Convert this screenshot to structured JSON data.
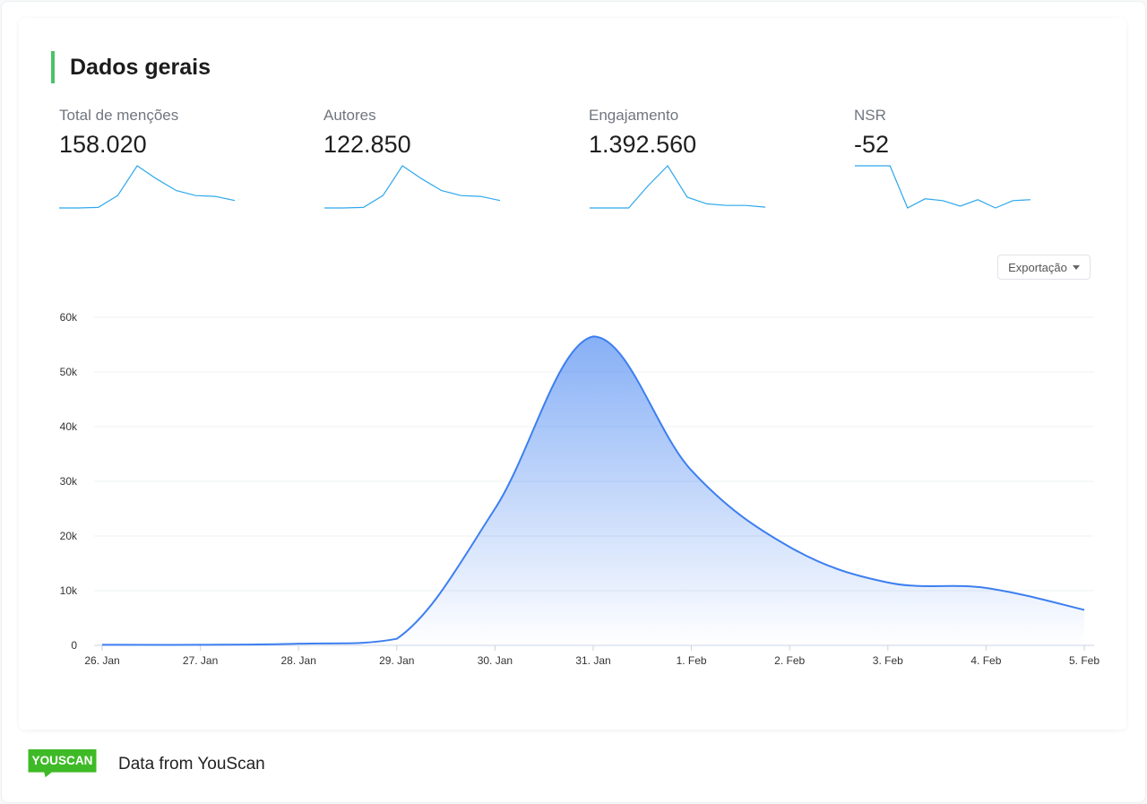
{
  "section": {
    "title": "Dados gerais"
  },
  "metrics": [
    {
      "label": "Total de menções",
      "value": "158.020",
      "spark": [
        0.5,
        0.5,
        0.8,
        8,
        26,
        18,
        11,
        8,
        7.5,
        5
      ]
    },
    {
      "label": "Autores",
      "value": "122.850",
      "spark": [
        0.5,
        0.5,
        0.8,
        8,
        26,
        18,
        11,
        8,
        7.5,
        5
      ]
    },
    {
      "label": "Engajamento",
      "value": "1.392.560",
      "spark": [
        0.5,
        0.5,
        0.5,
        14,
        26,
        7,
        3,
        2,
        2,
        1
      ]
    },
    {
      "label": "NSR",
      "value": "-52",
      "spark": [
        50,
        50,
        50,
        4,
        14,
        12,
        6,
        13,
        4,
        12,
        13
      ]
    }
  ],
  "toolbar": {
    "export_label": "Exportação"
  },
  "chart_data": {
    "type": "area",
    "title": "",
    "xlabel": "",
    "ylabel": "",
    "categories": [
      "26. Jan",
      "27. Jan",
      "28. Jan",
      "29. Jan",
      "30. Jan",
      "31. Jan",
      "1. Feb",
      "2. Feb",
      "3. Feb",
      "4. Feb",
      "5. Feb"
    ],
    "values": [
      100,
      100,
      300,
      1200,
      25000,
      56500,
      32000,
      18000,
      11500,
      10500,
      6500
    ],
    "ylim": [
      0,
      60000
    ],
    "y_ticks": [
      "0",
      "10k",
      "20k",
      "30k",
      "40k",
      "50k",
      "60k"
    ],
    "grid": true,
    "color": "#3d7ff0"
  },
  "footer": {
    "logo_text": "YOUSCAN",
    "source_text": "Data from YouScan"
  },
  "colors": {
    "accent_green": "#4cc26a",
    "line_blue": "#3d7ff0",
    "spark_blue": "#2ea8ec",
    "logo_green": "#3fba27"
  }
}
